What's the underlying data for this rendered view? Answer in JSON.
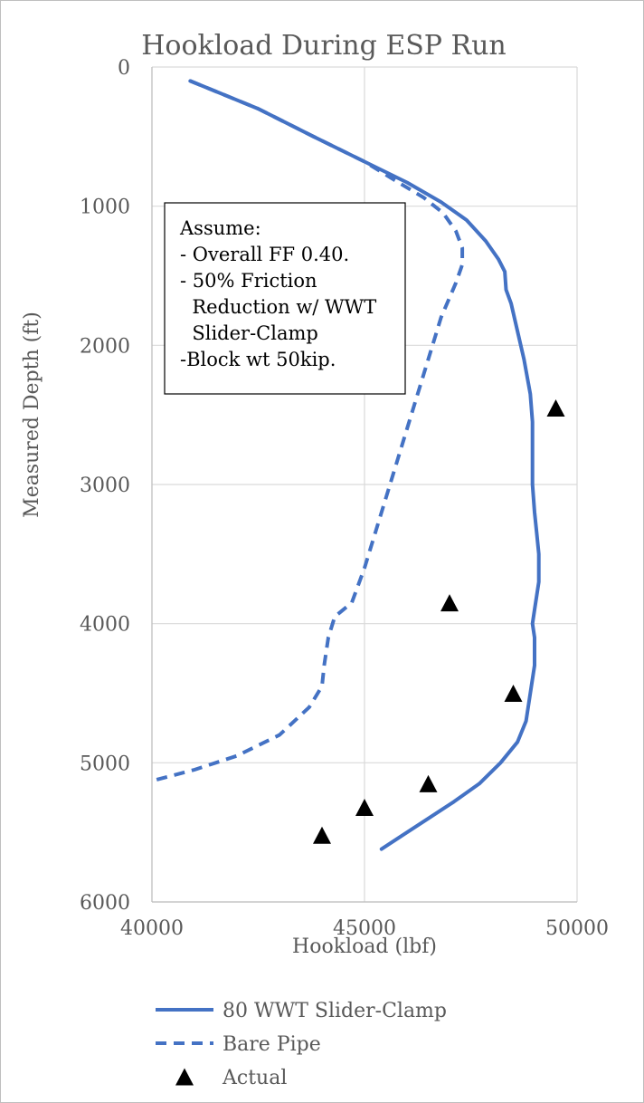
{
  "chart_data": {
    "type": "scatter",
    "title": "Hookload During ESP Run",
    "xlabel": "Hookload (lbf)",
    "ylabel": "Measured Depth (ft)",
    "xlim": [
      40000,
      50000
    ],
    "ylim": [
      0,
      6000
    ],
    "y_reversed": true,
    "grid": true,
    "x_ticks": [
      40000,
      45000,
      50000
    ],
    "y_ticks": [
      0,
      1000,
      2000,
      3000,
      4000,
      5000,
      6000
    ],
    "legend_position": "bottom",
    "series": [
      {
        "name": "80 WWT Slider-Clamp",
        "style": "solid-line",
        "color": "#4472c4",
        "x": [
          40900,
          42500,
          43800,
          45000,
          46000,
          46800,
          47400,
          47850,
          48150,
          48300,
          48330,
          48450,
          48600,
          48750,
          48900,
          48950,
          48950,
          48950,
          49000,
          49050,
          49100,
          49100,
          49000,
          48950,
          49000,
          49000,
          48900,
          48800,
          48600,
          48200,
          47700,
          47100,
          46500,
          45900,
          45400
        ],
        "y": [
          100,
          300,
          500,
          680,
          830,
          970,
          1100,
          1250,
          1380,
          1470,
          1600,
          1700,
          1900,
          2100,
          2350,
          2550,
          2700,
          3000,
          3200,
          3350,
          3500,
          3700,
          3900,
          4000,
          4100,
          4300,
          4500,
          4700,
          4850,
          5000,
          5150,
          5280,
          5400,
          5520,
          5620
        ]
      },
      {
        "name": "Bare Pipe",
        "style": "dashed-line",
        "color": "#4472c4",
        "x": [
          40900,
          42500,
          43800,
          45000,
          45800,
          46400,
          46850,
          47150,
          47300,
          47300,
          47150,
          46800,
          46400,
          46000,
          45600,
          45300,
          45000,
          44700,
          44300,
          44150,
          44050,
          44000,
          43700,
          43000,
          42000,
          41000,
          40000
        ],
        "y": [
          100,
          300,
          500,
          680,
          830,
          940,
          1050,
          1180,
          1300,
          1420,
          1550,
          1800,
          2200,
          2600,
          3000,
          3300,
          3600,
          3850,
          3950,
          4100,
          4300,
          4450,
          4600,
          4800,
          4950,
          5050,
          5130
        ]
      },
      {
        "name": "Actual",
        "style": "triangle-markers",
        "color": "#000000",
        "x": [
          49500,
          47000,
          48500,
          46500,
          45000,
          44000
        ],
        "y": [
          2450,
          3850,
          4500,
          5150,
          5320,
          5520
        ]
      }
    ],
    "annotation": {
      "lines": [
        "Assume:",
        "- Overall FF 0.40.",
        "- 50% Friction",
        "  Reduction w/ WWT",
        "  Slider-Clamp",
        "-Block wt 50kip."
      ]
    }
  }
}
